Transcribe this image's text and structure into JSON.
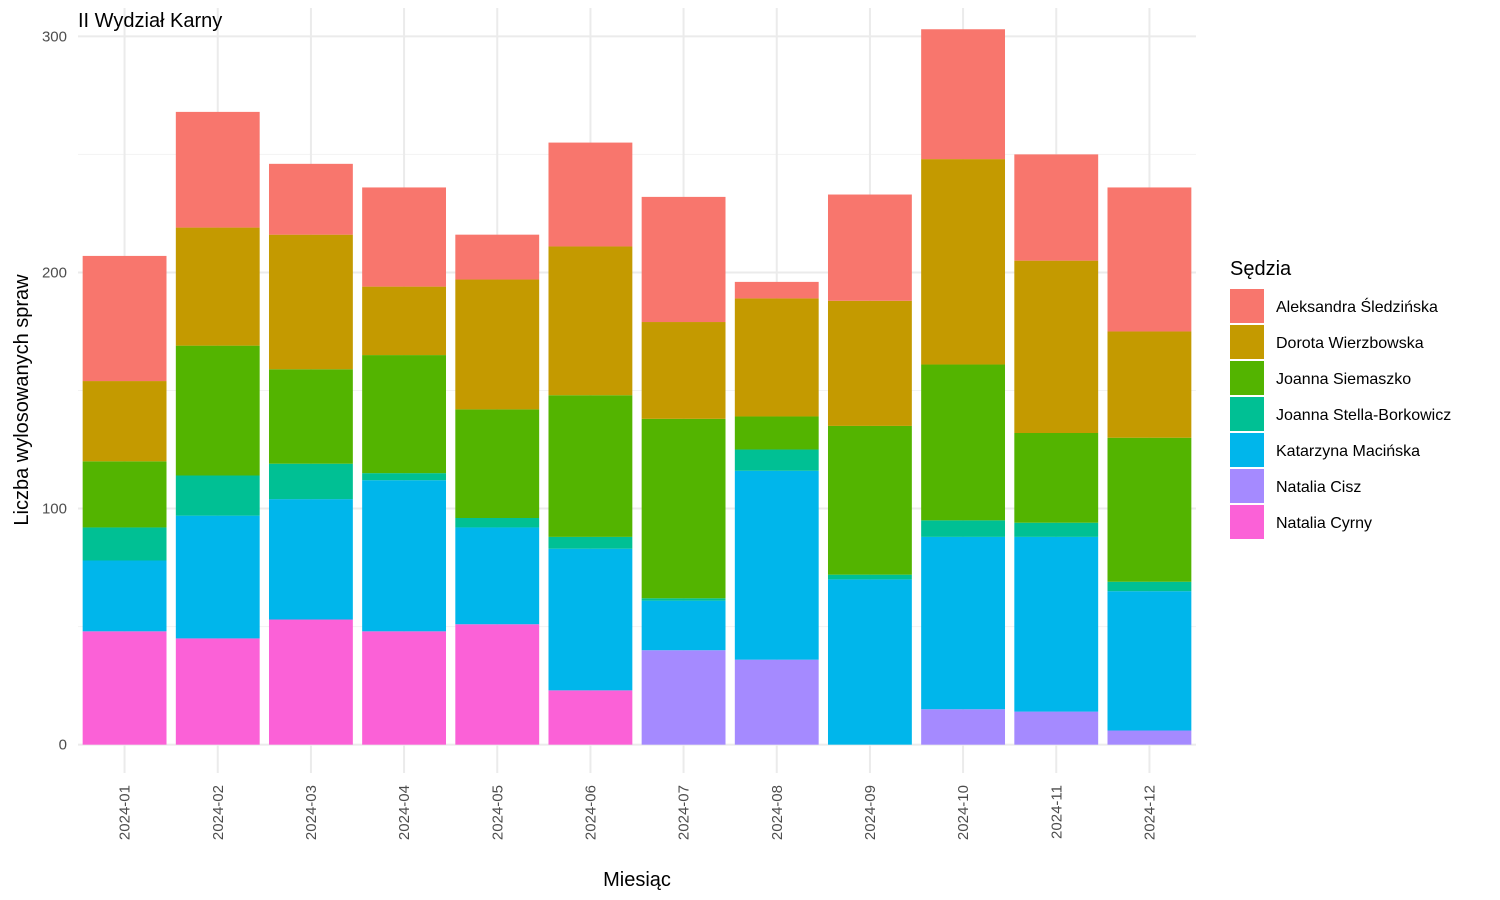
{
  "chart_data": {
    "type": "bar",
    "stacked": true,
    "title": "II Wydział Karny",
    "xlabel": "Miesiąc",
    "ylabel": "Liczba wylosowanych spraw",
    "ylim": [
      -12,
      312
    ],
    "yticks": [
      0,
      100,
      200,
      300
    ],
    "grid": true,
    "legend_title": "Sędzia",
    "legend_position": "right",
    "categories": [
      "2024-01",
      "2024-02",
      "2024-03",
      "2024-04",
      "2024-05",
      "2024-06",
      "2024-07",
      "2024-08",
      "2024-09",
      "2024-10",
      "2024-11",
      "2024-12"
    ],
    "series": [
      {
        "name": "Aleksandra Śledzińska",
        "color": "#F8766D",
        "values": [
          53,
          49,
          30,
          42,
          19,
          44,
          53,
          7,
          45,
          55,
          45,
          61
        ]
      },
      {
        "name": "Dorota Wierzbowska",
        "color": "#C49A00",
        "values": [
          34,
          50,
          57,
          29,
          55,
          63,
          41,
          50,
          53,
          87,
          73,
          45
        ]
      },
      {
        "name": "Joanna Siemaszko",
        "color": "#53B400",
        "values": [
          28,
          55,
          40,
          50,
          46,
          60,
          76,
          14,
          63,
          66,
          38,
          61
        ]
      },
      {
        "name": "Joanna Stella-Borkowicz",
        "color": "#00C094",
        "values": [
          14,
          17,
          15,
          3,
          4,
          5,
          1,
          9,
          2,
          7,
          6,
          4
        ]
      },
      {
        "name": "Katarzyna Macińska",
        "color": "#00B6EB",
        "values": [
          30,
          52,
          51,
          64,
          41,
          60,
          21,
          80,
          70,
          73,
          74,
          59
        ]
      },
      {
        "name": "Natalia Cisz",
        "color": "#A58AFF",
        "values": [
          0,
          0,
          0,
          0,
          0,
          0,
          40,
          36,
          0,
          15,
          14,
          6
        ]
      },
      {
        "name": "Natalia Cyrny",
        "color": "#FB61D7",
        "values": [
          48,
          45,
          53,
          48,
          51,
          23,
          0,
          0,
          0,
          0,
          0,
          0
        ]
      }
    ]
  }
}
